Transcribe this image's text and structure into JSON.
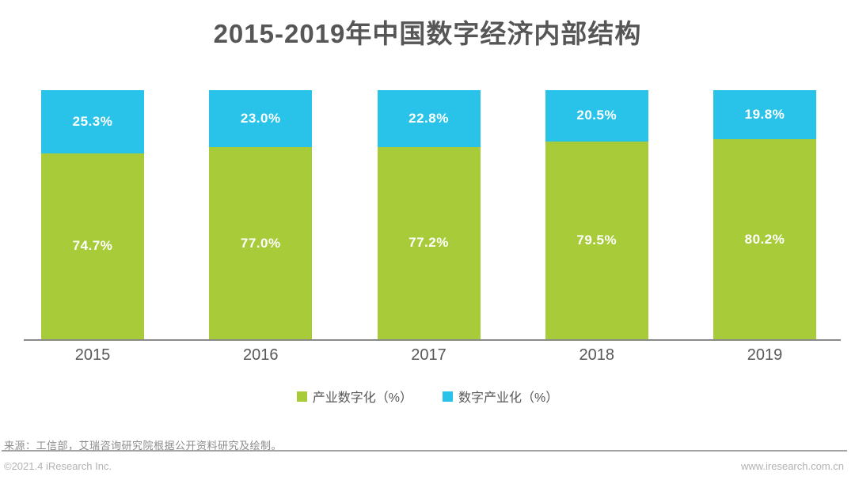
{
  "chart_data": {
    "type": "bar",
    "stacked": true,
    "unit": "%",
    "title": "2015-2019年中国数字经济内部结构",
    "categories": [
      "2015",
      "2016",
      "2017",
      "2018",
      "2019"
    ],
    "series": [
      {
        "name": "产业数字化（%）",
        "key": "industry-digitalization",
        "color": "#a8cb3a",
        "values": [
          74.7,
          77.0,
          77.2,
          79.5,
          80.2
        ],
        "labels": [
          "74.7%",
          "77.0%",
          "77.2%",
          "79.5%",
          "80.2%"
        ]
      },
      {
        "name": "数字产业化（%）",
        "key": "digital-industrialization",
        "color": "#29c3ea",
        "values": [
          25.3,
          23.0,
          22.8,
          20.5,
          19.8
        ],
        "labels": [
          "25.3%",
          "23.0%",
          "22.8%",
          "20.5%",
          "19.8%"
        ]
      }
    ],
    "xlabel": "",
    "ylabel": "",
    "ylim": [
      0,
      100
    ],
    "grid": false,
    "legend_position": "bottom",
    "label_color": "#ffffff"
  },
  "footer": {
    "source": "来源：工信部，艾瑞咨询研究院根据公开资料研究及绘制。",
    "copyright": "©2021.4 iResearch Inc.",
    "website": "www.iresearch.com.cn"
  },
  "colors": {
    "title_text": "#565656",
    "axis_line": "#8a8a8a",
    "tick_text": "#595757",
    "source_text": "#8c8c8c",
    "footer_text": "#b2b2b2"
  }
}
